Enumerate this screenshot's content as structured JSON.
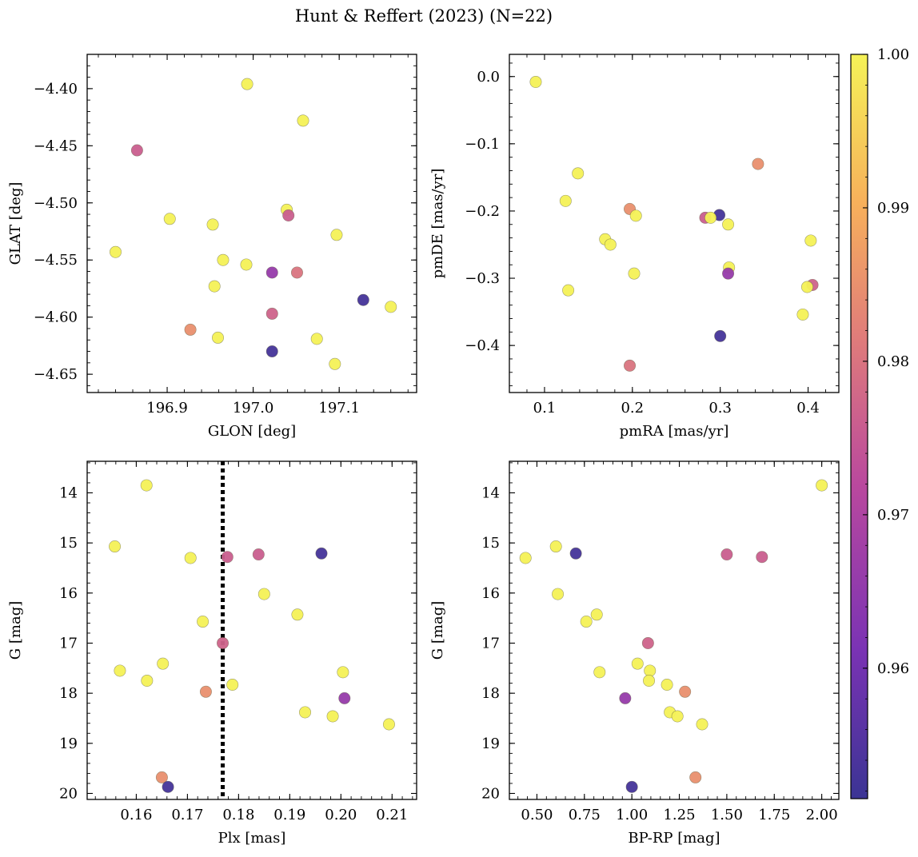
{
  "figure": {
    "title": "Hunt & Reffert (2023) (N=22)"
  },
  "colorbar": {
    "min": 0.9515,
    "max": 1.0,
    "ticks": [
      0.96,
      0.97,
      0.98,
      0.99,
      1.0
    ],
    "tick_labels": [
      "0.96",
      "0.97",
      "0.98",
      "0.99",
      "1.00"
    ],
    "colormap": "plasma",
    "colors": [
      "#3b3494",
      "#7a33b4",
      "#b9489e",
      "#e07c7a",
      "#f7b05b",
      "#f5f257"
    ]
  },
  "chart_data": [
    {
      "type": "scatter",
      "xlabel": "GLON [deg]",
      "ylabel": "GLAT [deg]",
      "xlim": [
        196.807,
        197.19
      ],
      "ylim": [
        -4.666,
        -4.37
      ],
      "xticks": [
        196.9,
        197.0,
        197.1
      ],
      "xtick_labels": [
        "196.9",
        "197.0",
        "197.1"
      ],
      "yticks": [
        -4.4,
        -4.45,
        -4.5,
        -4.55,
        -4.6,
        -4.65
      ],
      "ytick_labels": [
        "−4.40",
        "−4.45",
        "−4.50",
        "−4.55",
        "−4.60",
        "−4.65"
      ],
      "y_inverted": false,
      "points": [
        {
          "x": 196.993,
          "y": -4.396,
          "c": 1.0
        },
        {
          "x": 197.058,
          "y": -4.428,
          "c": 1.0
        },
        {
          "x": 196.865,
          "y": -4.454,
          "c": 0.976
        },
        {
          "x": 197.039,
          "y": -4.506,
          "c": 1.0
        },
        {
          "x": 197.041,
          "y": -4.511,
          "c": 0.976
        },
        {
          "x": 196.903,
          "y": -4.514,
          "c": 1.0
        },
        {
          "x": 196.953,
          "y": -4.519,
          "c": 1.0
        },
        {
          "x": 197.097,
          "y": -4.528,
          "c": 1.0
        },
        {
          "x": 196.84,
          "y": -4.543,
          "c": 1.0
        },
        {
          "x": 196.965,
          "y": -4.55,
          "c": 1.0
        },
        {
          "x": 196.992,
          "y": -4.554,
          "c": 1.0
        },
        {
          "x": 197.022,
          "y": -4.561,
          "c": 0.966
        },
        {
          "x": 197.051,
          "y": -4.561,
          "c": 0.98
        },
        {
          "x": 196.955,
          "y": -4.573,
          "c": 1.0
        },
        {
          "x": 197.128,
          "y": -4.585,
          "c": 0.953
        },
        {
          "x": 197.16,
          "y": -4.591,
          "c": 1.0
        },
        {
          "x": 197.022,
          "y": -4.597,
          "c": 0.977
        },
        {
          "x": 196.927,
          "y": -4.611,
          "c": 0.985
        },
        {
          "x": 196.959,
          "y": -4.618,
          "c": 1.0
        },
        {
          "x": 197.074,
          "y": -4.619,
          "c": 1.0
        },
        {
          "x": 197.022,
          "y": -4.63,
          "c": 0.953
        },
        {
          "x": 197.095,
          "y": -4.641,
          "c": 1.0
        }
      ]
    },
    {
      "type": "scatter",
      "xlabel": "pmRA [mas/yr]",
      "ylabel": "pmDE [mas/yr]",
      "xlim": [
        0.06,
        0.435
      ],
      "ylim": [
        -0.47,
        0.033
      ],
      "xticks": [
        0.1,
        0.2,
        0.3,
        0.4
      ],
      "xtick_labels": [
        "0.1",
        "0.2",
        "0.3",
        "0.4"
      ],
      "yticks": [
        0.0,
        -0.1,
        -0.2,
        -0.3,
        -0.4
      ],
      "ytick_labels": [
        "0.0",
        "−0.1",
        "−0.2",
        "−0.3",
        "−0.4"
      ],
      "y_inverted": false,
      "points": [
        {
          "x": 0.09,
          "y": -0.008,
          "c": 1.0
        },
        {
          "x": 0.343,
          "y": -0.13,
          "c": 0.985
        },
        {
          "x": 0.138,
          "y": -0.144,
          "c": 1.0
        },
        {
          "x": 0.124,
          "y": -0.185,
          "c": 1.0
        },
        {
          "x": 0.197,
          "y": -0.197,
          "c": 0.985
        },
        {
          "x": 0.204,
          "y": -0.207,
          "c": 1.0
        },
        {
          "x": 0.299,
          "y": -0.206,
          "c": 0.953
        },
        {
          "x": 0.283,
          "y": -0.21,
          "c": 0.976
        },
        {
          "x": 0.289,
          "y": -0.21,
          "c": 1.0
        },
        {
          "x": 0.309,
          "y": -0.22,
          "c": 1.0
        },
        {
          "x": 0.169,
          "y": -0.242,
          "c": 1.0
        },
        {
          "x": 0.403,
          "y": -0.244,
          "c": 1.0
        },
        {
          "x": 0.175,
          "y": -0.25,
          "c": 1.0
        },
        {
          "x": 0.31,
          "y": -0.284,
          "c": 1.0
        },
        {
          "x": 0.309,
          "y": -0.293,
          "c": 0.966
        },
        {
          "x": 0.202,
          "y": -0.293,
          "c": 1.0
        },
        {
          "x": 0.405,
          "y": -0.31,
          "c": 0.977
        },
        {
          "x": 0.399,
          "y": -0.313,
          "c": 1.0
        },
        {
          "x": 0.127,
          "y": -0.318,
          "c": 1.0
        },
        {
          "x": 0.394,
          "y": -0.354,
          "c": 1.0
        },
        {
          "x": 0.3,
          "y": -0.386,
          "c": 0.953
        },
        {
          "x": 0.197,
          "y": -0.43,
          "c": 0.98
        }
      ]
    },
    {
      "type": "scatter",
      "xlabel": "Plx [mas]",
      "ylabel": "G [mag]",
      "xlim": [
        0.1504,
        0.2148
      ],
      "ylim": [
        20.12,
        13.37
      ],
      "xticks": [
        0.16,
        0.17,
        0.18,
        0.19,
        0.2,
        0.21
      ],
      "xtick_labels": [
        "0.16",
        "0.17",
        "0.18",
        "0.19",
        "0.20",
        "0.21"
      ],
      "yticks": [
        14,
        15,
        16,
        17,
        18,
        19,
        20
      ],
      "ytick_labels": [
        "14",
        "15",
        "16",
        "17",
        "18",
        "19",
        "20"
      ],
      "y_inverted": true,
      "vline": 0.1769,
      "points": [
        {
          "x": 0.162,
          "y": 13.85,
          "c": 1.0
        },
        {
          "x": 0.1558,
          "y": 15.07,
          "c": 1.0
        },
        {
          "x": 0.1962,
          "y": 15.21,
          "c": 0.953
        },
        {
          "x": 0.1839,
          "y": 15.23,
          "c": 0.976
        },
        {
          "x": 0.1778,
          "y": 15.28,
          "c": 0.976
        },
        {
          "x": 0.1706,
          "y": 15.3,
          "c": 1.0
        },
        {
          "x": 0.185,
          "y": 16.02,
          "c": 1.0
        },
        {
          "x": 0.1915,
          "y": 16.43,
          "c": 1.0
        },
        {
          "x": 0.173,
          "y": 16.57,
          "c": 1.0
        },
        {
          "x": 0.1769,
          "y": 17.0,
          "c": 0.977
        },
        {
          "x": 0.1652,
          "y": 17.41,
          "c": 1.0
        },
        {
          "x": 0.1568,
          "y": 17.55,
          "c": 1.0
        },
        {
          "x": 0.2004,
          "y": 17.58,
          "c": 1.0
        },
        {
          "x": 0.1621,
          "y": 17.75,
          "c": 1.0
        },
        {
          "x": 0.1788,
          "y": 17.83,
          "c": 1.0
        },
        {
          "x": 0.1736,
          "y": 17.97,
          "c": 0.985
        },
        {
          "x": 0.2007,
          "y": 18.1,
          "c": 0.966
        },
        {
          "x": 0.193,
          "y": 18.38,
          "c": 1.0
        },
        {
          "x": 0.1984,
          "y": 18.46,
          "c": 1.0
        },
        {
          "x": 0.2094,
          "y": 18.62,
          "c": 1.0
        },
        {
          "x": 0.165,
          "y": 19.68,
          "c": 0.985
        },
        {
          "x": 0.1662,
          "y": 19.87,
          "c": 0.953
        }
      ]
    },
    {
      "type": "scatter",
      "xlabel": "BP-RP [mag]",
      "ylabel": "G [mag]",
      "xlim": [
        0.355,
        2.09
      ],
      "ylim": [
        20.12,
        13.37
      ],
      "xticks": [
        0.5,
        0.75,
        1.0,
        1.25,
        1.5,
        1.75,
        2.0
      ],
      "xtick_labels": [
        "0.50",
        "0.75",
        "1.00",
        "1.25",
        "1.50",
        "1.75",
        "2.00"
      ],
      "yticks": [
        14,
        15,
        16,
        17,
        18,
        19,
        20
      ],
      "ytick_labels": [
        "14",
        "15",
        "16",
        "17",
        "18",
        "19",
        "20"
      ],
      "y_inverted": true,
      "points": [
        {
          "x": 2.0,
          "y": 13.85,
          "c": 1.0
        },
        {
          "x": 0.6,
          "y": 15.07,
          "c": 1.0
        },
        {
          "x": 0.705,
          "y": 15.21,
          "c": 0.953
        },
        {
          "x": 1.5,
          "y": 15.23,
          "c": 0.976
        },
        {
          "x": 1.685,
          "y": 15.28,
          "c": 0.976
        },
        {
          "x": 0.44,
          "y": 15.3,
          "c": 1.0
        },
        {
          "x": 0.61,
          "y": 16.02,
          "c": 1.0
        },
        {
          "x": 0.815,
          "y": 16.43,
          "c": 1.0
        },
        {
          "x": 0.76,
          "y": 16.57,
          "c": 1.0
        },
        {
          "x": 1.085,
          "y": 17.0,
          "c": 0.977
        },
        {
          "x": 1.03,
          "y": 17.41,
          "c": 1.0
        },
        {
          "x": 1.095,
          "y": 17.55,
          "c": 1.0
        },
        {
          "x": 0.83,
          "y": 17.58,
          "c": 1.0
        },
        {
          "x": 1.09,
          "y": 17.75,
          "c": 1.0
        },
        {
          "x": 1.185,
          "y": 17.83,
          "c": 1.0
        },
        {
          "x": 1.28,
          "y": 17.97,
          "c": 0.985
        },
        {
          "x": 0.965,
          "y": 18.1,
          "c": 0.966
        },
        {
          "x": 1.2,
          "y": 18.38,
          "c": 1.0
        },
        {
          "x": 1.24,
          "y": 18.46,
          "c": 1.0
        },
        {
          "x": 1.37,
          "y": 18.62,
          "c": 1.0
        },
        {
          "x": 1.335,
          "y": 19.68,
          "c": 0.985
        },
        {
          "x": 1.0,
          "y": 19.87,
          "c": 0.953
        }
      ]
    }
  ]
}
